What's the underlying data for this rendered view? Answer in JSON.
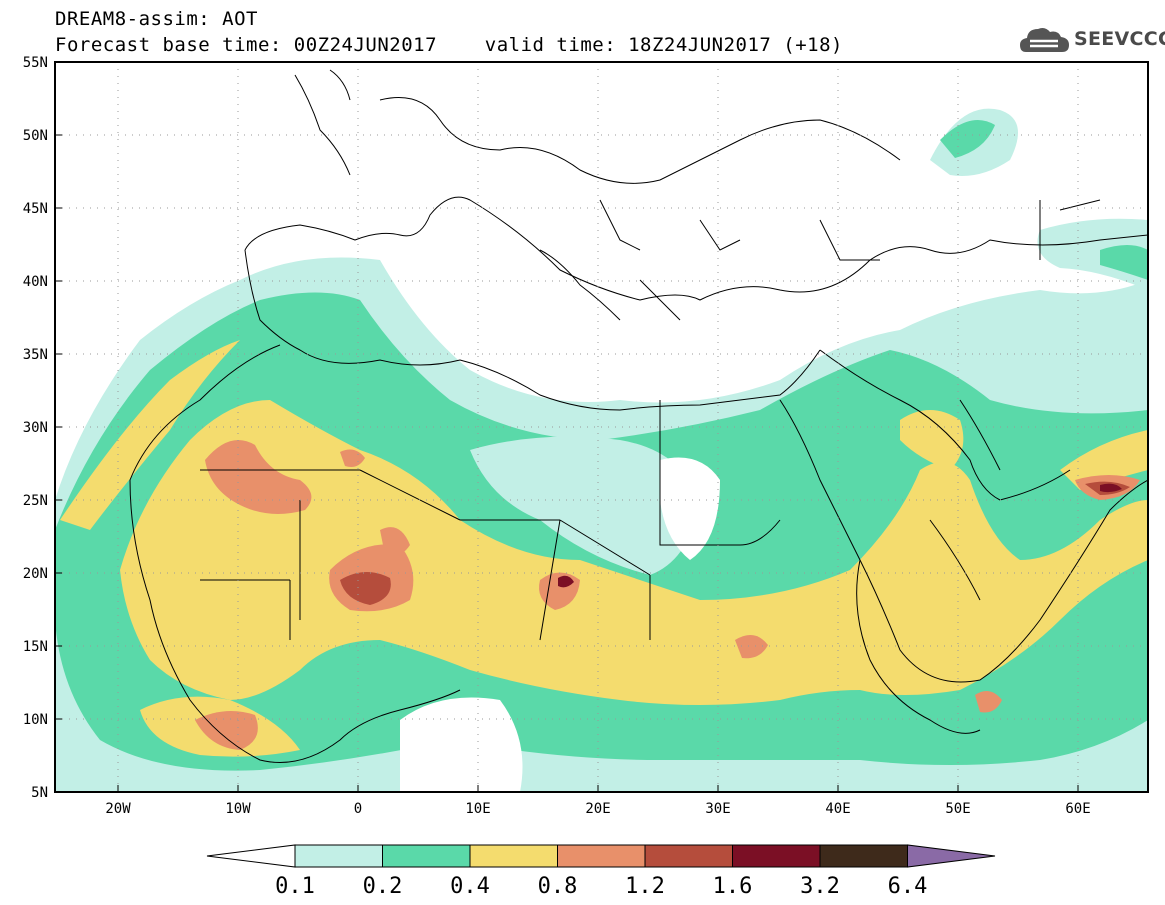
{
  "header": {
    "title_line1": "DREAM8-assim: AOT",
    "title_line2": "Forecast base time: 00Z24JUN2017    valid time: 18Z24JUN2017 (+18)"
  },
  "logo": {
    "text": "SEEVCCC",
    "icon": "cloud-icon"
  },
  "map": {
    "lat_labels": [
      "55N",
      "50N",
      "45N",
      "40N",
      "35N",
      "30N",
      "25N",
      "20N",
      "15N",
      "10N",
      "5N"
    ],
    "lon_labels": [
      "20W",
      "10W",
      "0",
      "10E",
      "20E",
      "30E",
      "40E",
      "50E",
      "60E"
    ]
  },
  "legend": {
    "thresholds": [
      "0.1",
      "0.2",
      "0.4",
      "0.8",
      "1.2",
      "1.6",
      "3.2",
      "6.4"
    ],
    "colors": [
      "#ffffff",
      "#c2efe6",
      "#5ad9a9",
      "#f4dc6e",
      "#e8906a",
      "#b54d3c",
      "#7b0f25",
      "#3e2a1b",
      "#8a6aa6"
    ]
  }
}
